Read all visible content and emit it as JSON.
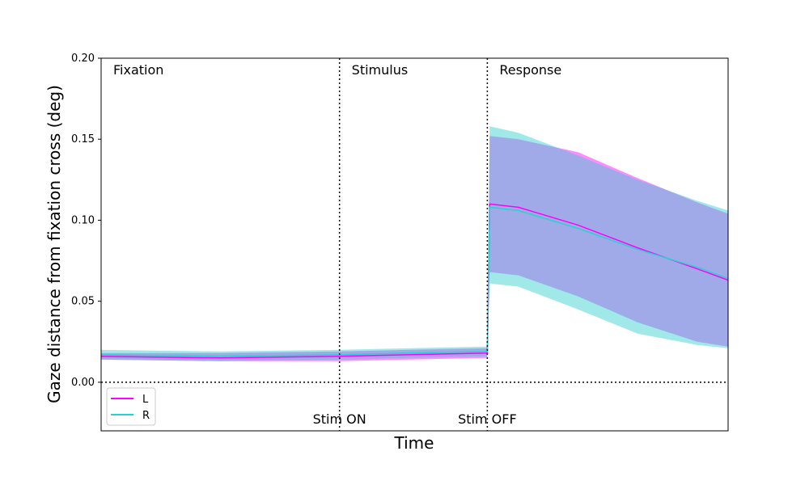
{
  "chart_data": {
    "type": "line",
    "xlabel": "Time",
    "ylabel": "Gaze distance from fixation cross (deg)",
    "ylim": [
      -0.03,
      0.2
    ],
    "y_ticks": [
      "0.00",
      "0.05",
      "0.10",
      "0.15",
      "0.20"
    ],
    "y_tick_values": [
      0.0,
      0.05,
      0.1,
      0.15,
      0.2
    ],
    "grid": false,
    "legend_position": "bottom-left",
    "zero_line": 0.0,
    "phases": [
      {
        "label": "Fixation",
        "start": 0.0,
        "end": 1.0
      },
      {
        "label": "Stimulus",
        "start": 1.0,
        "end": 1.62
      },
      {
        "label": "Response",
        "start": 1.62,
        "end": 2.63
      }
    ],
    "events": [
      {
        "label": "Stim ON",
        "x": 1.0
      },
      {
        "label": "Stim OFF",
        "x": 1.62
      }
    ],
    "series": [
      {
        "name": "L",
        "color": "#ff00ff",
        "x": [
          0.0,
          0.5,
          1.0,
          1.3,
          1.62,
          1.63,
          1.75,
          2.0,
          2.25,
          2.5,
          2.63
        ],
        "mean": [
          0.016,
          0.015,
          0.016,
          0.017,
          0.018,
          0.11,
          0.108,
          0.097,
          0.083,
          0.07,
          0.063
        ],
        "upper": [
          0.018,
          0.018,
          0.019,
          0.02,
          0.021,
          0.152,
          0.15,
          0.142,
          0.126,
          0.111,
          0.104
        ],
        "lower": [
          0.014,
          0.013,
          0.013,
          0.014,
          0.015,
          0.068,
          0.066,
          0.053,
          0.037,
          0.025,
          0.022
        ]
      },
      {
        "name": "R",
        "color": "#2ecfcf",
        "x": [
          0.0,
          0.5,
          1.0,
          1.3,
          1.62,
          1.63,
          1.75,
          2.0,
          2.25,
          2.5,
          2.63
        ],
        "mean": [
          0.017,
          0.016,
          0.017,
          0.018,
          0.019,
          0.108,
          0.106,
          0.095,
          0.082,
          0.071,
          0.064
        ],
        "upper": [
          0.02,
          0.019,
          0.02,
          0.021,
          0.022,
          0.158,
          0.154,
          0.14,
          0.125,
          0.112,
          0.106
        ],
        "lower": [
          0.014,
          0.013,
          0.014,
          0.015,
          0.016,
          0.061,
          0.059,
          0.045,
          0.03,
          0.023,
          0.021
        ]
      }
    ]
  }
}
